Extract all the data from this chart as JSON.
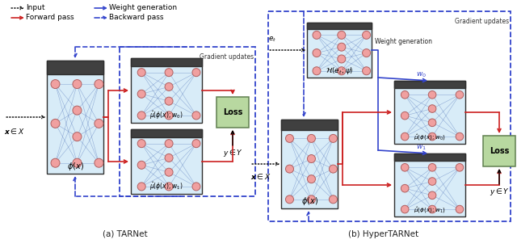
{
  "fig_width": 6.4,
  "fig_height": 3.07,
  "dpi": 100,
  "background": "#ffffff",
  "node_fill": "#f0a0a0",
  "node_edge": "#b06060",
  "box_fill": "#d8ecf8",
  "box_edge": "#505050",
  "box_edge_dark": "#303030",
  "loss_fill": "#b8d8a0",
  "loss_edge": "#608050",
  "blue": "#3344cc",
  "red": "#cc2020",
  "black": "#000000",
  "dark_bar": "#404040",
  "legend_input": "Input",
  "legend_forward": "Forward pass",
  "legend_weight": "Weight generation",
  "legend_backward": "Backward pass",
  "caption_a": "(a) TARNet",
  "caption_b": "(b) HyperTARNet",
  "label_gradient": "Gradient updates",
  "label_weight_gen": "Weight generation"
}
